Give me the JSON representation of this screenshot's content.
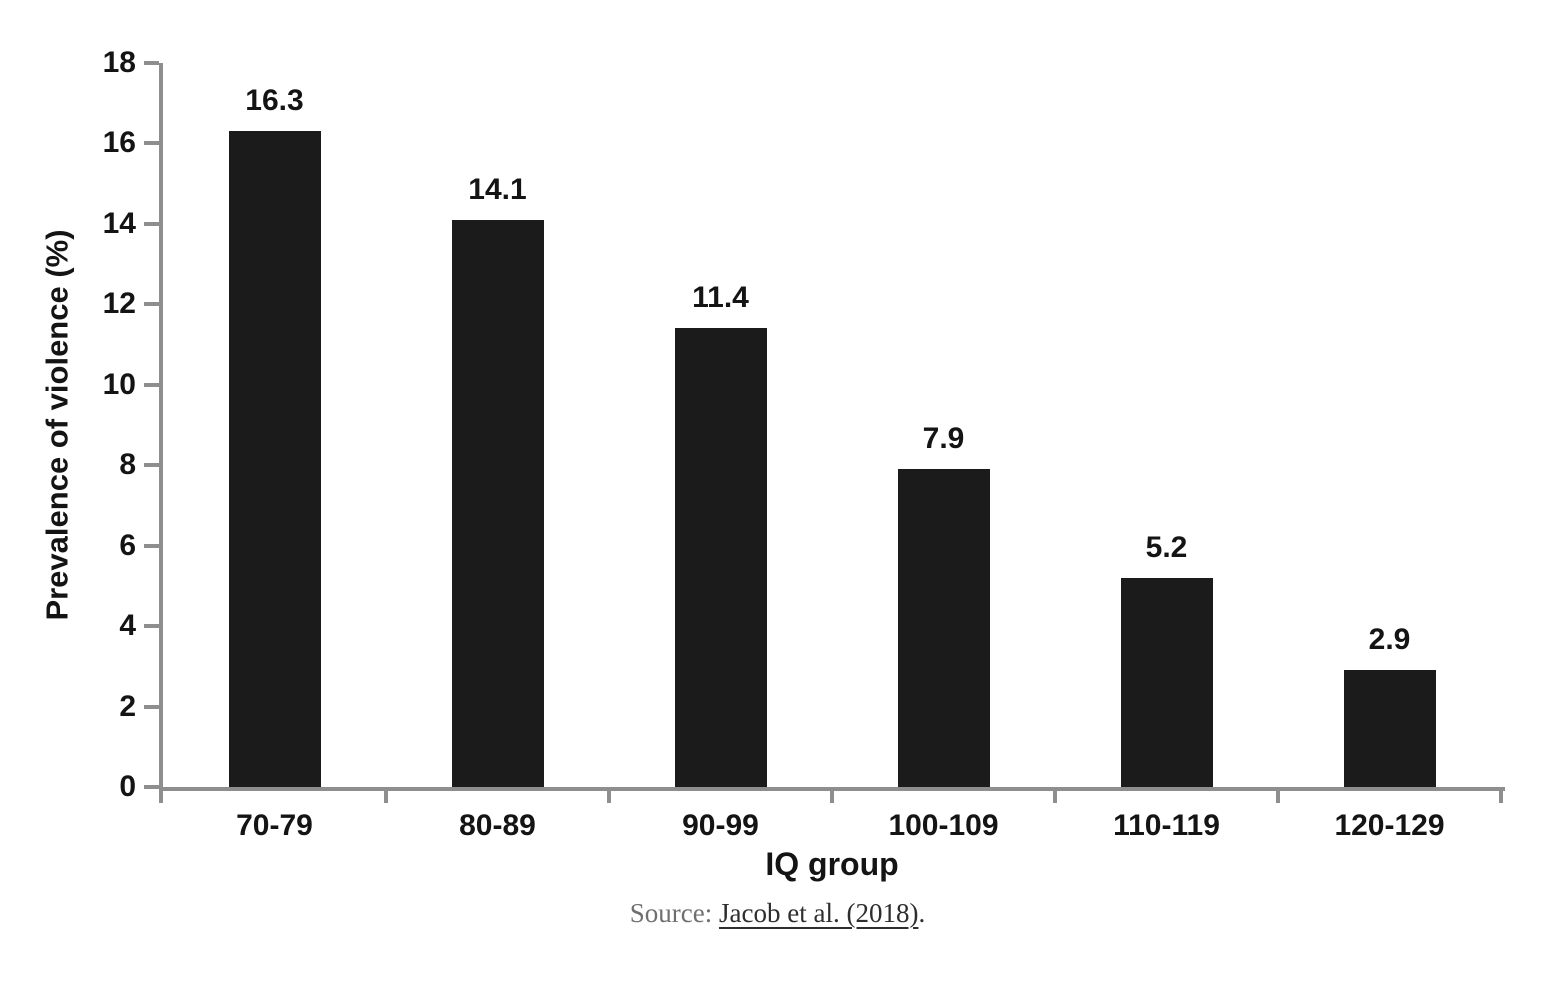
{
  "chart_data": {
    "type": "bar",
    "categories": [
      "70-79",
      "80-89",
      "90-99",
      "100-109",
      "110-119",
      "120-129"
    ],
    "values": [
      16.3,
      14.1,
      11.4,
      7.9,
      5.2,
      2.9
    ],
    "data_labels": [
      "16.3",
      "14.1",
      "11.4",
      "7.9",
      "5.2",
      "2.9"
    ],
    "title": "",
    "xlabel": "IQ group",
    "ylabel": "Prevalence of violence (%)",
    "ylim": [
      0,
      18
    ],
    "ytick_step": 2,
    "ytick_labels": [
      "0",
      "2",
      "4",
      "6",
      "8",
      "10",
      "12",
      "14",
      "16",
      "18"
    ],
    "grid": false,
    "legend": false,
    "bar_color": "#1b1b1b",
    "axis_color": "#8e8e8e",
    "label_color": "#141414"
  },
  "source": {
    "prefix": "Source: ",
    "link_text": "Jacob et al. (2018)",
    "suffix": "."
  }
}
